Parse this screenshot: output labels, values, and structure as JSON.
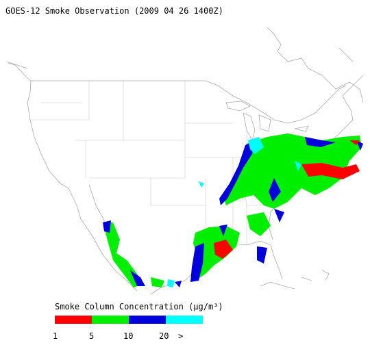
{
  "title": "GOES-12 Smoke Observation (2009 04 26  1400Z)",
  "legend": {
    "title": "Smoke Column Concentration (μg/m³)",
    "colors": [
      "#ff0000",
      "#00ee00",
      "#0000dd",
      "#00ffff"
    ],
    "labels": [
      "1",
      "5",
      "10",
      "20",
      ">"
    ]
  }
}
